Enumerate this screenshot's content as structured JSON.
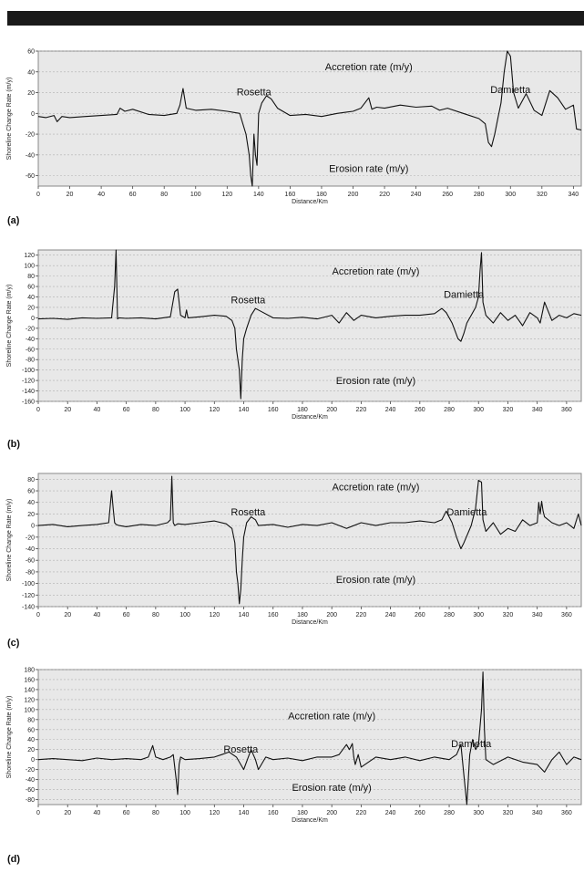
{
  "figure": {
    "panel_labels": [
      "(a)",
      "(b)",
      "(c)",
      "(d)"
    ]
  },
  "chart_data": [
    {
      "type": "line",
      "ylabel": "Shoreline Change Rate (m/y)",
      "xlabel": "Distance/Km",
      "xlim": [
        0,
        345
      ],
      "ylim": [
        -70,
        60
      ],
      "yticks": [
        -60,
        -40,
        -20,
        0,
        20,
        40,
        60
      ],
      "xticks": [
        0,
        20,
        40,
        60,
        80,
        100,
        120,
        140,
        160,
        180,
        200,
        220,
        240,
        260,
        280,
        300,
        320,
        340
      ],
      "grid": true,
      "annotations": [
        {
          "text": "Accretion rate (m/y)",
          "x": 210,
          "y": 45
        },
        {
          "text": "Rosetta",
          "x": 137,
          "y": 21
        },
        {
          "text": "Damietta",
          "x": 300,
          "y": 23
        },
        {
          "text": "Erosion rate (m/y)",
          "x": 210,
          "y": -53
        }
      ],
      "series": [
        {
          "x": [
            0,
            5,
            10,
            12,
            15,
            20,
            30,
            40,
            50,
            52,
            55,
            60,
            70,
            80,
            88,
            90,
            92,
            94,
            100,
            110,
            120,
            128,
            132,
            134,
            135,
            136,
            137,
            138,
            139,
            140,
            142,
            145,
            148,
            152,
            160,
            170,
            180,
            190,
            200,
            205,
            210,
            212,
            215,
            220,
            230,
            240,
            250,
            255,
            260,
            270,
            280,
            284,
            286,
            288,
            290,
            292,
            294,
            296,
            298,
            300,
            302,
            305,
            310,
            315,
            320,
            325,
            330,
            335,
            340,
            342,
            345
          ],
          "y": [
            -3,
            -4,
            -2,
            -8,
            -3,
            -4,
            -3,
            -2,
            -1,
            5,
            2,
            4,
            -1,
            -2,
            0,
            8,
            24,
            5,
            3,
            4,
            2,
            0,
            -20,
            -40,
            -60,
            -70,
            -20,
            -40,
            -50,
            0,
            10,
            17,
            14,
            5,
            -2,
            -1,
            -3,
            0,
            2,
            5,
            15,
            4,
            6,
            5,
            8,
            6,
            7,
            3,
            5,
            0,
            -5,
            -10,
            -28,
            -32,
            -20,
            -5,
            10,
            40,
            60,
            55,
            20,
            5,
            19,
            3,
            -2,
            22,
            15,
            4,
            8,
            -15,
            -16
          ]
        }
      ]
    },
    {
      "type": "line",
      "ylabel": "Shoreline Change Rate (m/y)",
      "xlabel": "Distance/Km",
      "xlim": [
        0,
        370
      ],
      "ylim": [
        -160,
        130
      ],
      "yticks": [
        -160,
        -140,
        -120,
        -100,
        -80,
        -60,
        -40,
        -20,
        0,
        20,
        40,
        60,
        80,
        100,
        120
      ],
      "xticks": [
        0,
        20,
        40,
        60,
        80,
        100,
        120,
        140,
        160,
        180,
        200,
        220,
        240,
        260,
        280,
        300,
        320,
        340,
        360
      ],
      "grid": true,
      "annotations": [
        {
          "text": "Accretion rate (m/y)",
          "x": 230,
          "y": 90
        },
        {
          "text": "Rosetta",
          "x": 143,
          "y": 35
        },
        {
          "text": "Damietta",
          "x": 290,
          "y": 45
        },
        {
          "text": "Erosion rate (m/y)",
          "x": 230,
          "y": -120
        }
      ],
      "series": [
        {
          "x": [
            0,
            10,
            20,
            30,
            40,
            50,
            52,
            53,
            54,
            55,
            60,
            70,
            80,
            90,
            93,
            95,
            97,
            100,
            101,
            102,
            110,
            120,
            128,
            132,
            134,
            135,
            136,
            137,
            138,
            139,
            140,
            142,
            145,
            148,
            150,
            160,
            170,
            180,
            190,
            200,
            205,
            210,
            215,
            220,
            230,
            240,
            250,
            260,
            270,
            275,
            278,
            282,
            286,
            288,
            290,
            292,
            295,
            298,
            300,
            301,
            302,
            303,
            305,
            310,
            315,
            320,
            325,
            330,
            335,
            340,
            342,
            345,
            350,
            355,
            360,
            365,
            370
          ],
          "y": [
            -2,
            -1,
            -3,
            0,
            -1,
            0,
            60,
            130,
            -2,
            0,
            -1,
            0,
            -2,
            2,
            50,
            55,
            5,
            0,
            15,
            0,
            2,
            5,
            3,
            -5,
            -20,
            -60,
            -80,
            -100,
            -155,
            -80,
            -40,
            -20,
            5,
            18,
            15,
            0,
            -1,
            1,
            -2,
            5,
            -10,
            10,
            -5,
            5,
            0,
            3,
            5,
            5,
            8,
            18,
            10,
            -10,
            -40,
            -45,
            -30,
            -10,
            5,
            20,
            40,
            90,
            125,
            30,
            5,
            -10,
            10,
            -5,
            5,
            -15,
            10,
            0,
            -10,
            30,
            -5,
            5,
            0,
            8,
            5
          ]
        }
      ]
    },
    {
      "type": "line",
      "ylabel": "Shoreline Change Rate (m/y)",
      "xlabel": "Distance/Km",
      "xlim": [
        0,
        370
      ],
      "ylim": [
        -140,
        90
      ],
      "yticks": [
        -140,
        -120,
        -100,
        -80,
        -60,
        -40,
        -20,
        0,
        20,
        40,
        60,
        80
      ],
      "xticks": [
        0,
        20,
        40,
        60,
        80,
        100,
        120,
        140,
        160,
        180,
        200,
        220,
        240,
        260,
        280,
        300,
        320,
        340,
        360
      ],
      "grid": true,
      "annotations": [
        {
          "text": "Accretion rate (m/y)",
          "x": 230,
          "y": 67
        },
        {
          "text": "Rosetta",
          "x": 143,
          "y": 24
        },
        {
          "text": "Damietta",
          "x": 292,
          "y": 24
        },
        {
          "text": "Erosion rate (m/y)",
          "x": 230,
          "y": -93
        }
      ],
      "series": [
        {
          "x": [
            0,
            10,
            20,
            30,
            40,
            48,
            50,
            51,
            52,
            53,
            55,
            60,
            70,
            80,
            88,
            90,
            91,
            92,
            93,
            95,
            100,
            110,
            120,
            128,
            132,
            134,
            135,
            136,
            137,
            138,
            139,
            140,
            142,
            145,
            148,
            150,
            160,
            170,
            180,
            190,
            200,
            210,
            220,
            230,
            240,
            250,
            260,
            270,
            275,
            278,
            282,
            285,
            288,
            290,
            295,
            298,
            300,
            302,
            303,
            305,
            310,
            315,
            320,
            325,
            330,
            335,
            340,
            341,
            342,
            343,
            344,
            345,
            350,
            355,
            360,
            365,
            368,
            370
          ],
          "y": [
            0,
            2,
            -2,
            0,
            2,
            5,
            60,
            30,
            5,
            2,
            0,
            -2,
            2,
            0,
            5,
            10,
            85,
            5,
            0,
            3,
            2,
            5,
            8,
            3,
            -5,
            -30,
            -80,
            -100,
            -135,
            -110,
            -60,
            -20,
            5,
            15,
            10,
            0,
            2,
            -3,
            2,
            0,
            5,
            -5,
            5,
            0,
            5,
            5,
            8,
            5,
            10,
            25,
            5,
            -20,
            -40,
            -30,
            0,
            30,
            78,
            75,
            10,
            -10,
            5,
            -15,
            -5,
            -10,
            10,
            0,
            5,
            40,
            20,
            42,
            25,
            15,
            5,
            0,
            5,
            -5,
            20,
            0
          ]
        }
      ]
    },
    {
      "type": "line",
      "ylabel": "Shoreline Change Rate (m/y)",
      "xlabel": "Distance/Km",
      "xlim": [
        0,
        370
      ],
      "ylim": [
        -90,
        180
      ],
      "yticks": [
        -80,
        -60,
        -40,
        -20,
        0,
        20,
        40,
        60,
        80,
        100,
        120,
        140,
        160,
        180
      ],
      "xticks": [
        0,
        20,
        40,
        60,
        80,
        100,
        120,
        140,
        160,
        180,
        200,
        220,
        240,
        260,
        280,
        300,
        320,
        340,
        360
      ],
      "grid": true,
      "annotations": [
        {
          "text": "Accretion rate (m/y)",
          "x": 200,
          "y": 88
        },
        {
          "text": "Rosetta",
          "x": 138,
          "y": 21
        },
        {
          "text": "Damietta",
          "x": 295,
          "y": 32
        },
        {
          "text": "Erosion rate (m/y)",
          "x": 200,
          "y": -55
        }
      ],
      "series": [
        {
          "x": [
            0,
            10,
            20,
            30,
            40,
            50,
            60,
            70,
            75,
            78,
            80,
            85,
            90,
            92,
            94,
            95,
            96,
            97,
            100,
            110,
            120,
            125,
            130,
            135,
            138,
            140,
            145,
            148,
            150,
            155,
            160,
            170,
            180,
            190,
            200,
            205,
            210,
            212,
            214,
            215,
            216,
            218,
            220,
            230,
            240,
            250,
            260,
            270,
            280,
            285,
            288,
            290,
            292,
            294,
            296,
            298,
            300,
            302,
            303,
            304,
            305,
            310,
            320,
            330,
            340,
            345,
            350,
            355,
            360,
            365,
            370
          ],
          "y": [
            0,
            2,
            0,
            -2,
            3,
            0,
            2,
            0,
            5,
            28,
            5,
            0,
            5,
            10,
            -40,
            -70,
            -10,
            5,
            0,
            2,
            5,
            10,
            15,
            5,
            -10,
            -20,
            20,
            0,
            -20,
            5,
            0,
            3,
            -2,
            5,
            5,
            10,
            30,
            20,
            32,
            5,
            -10,
            10,
            -15,
            5,
            0,
            5,
            -2,
            5,
            0,
            10,
            30,
            -30,
            -90,
            10,
            40,
            20,
            30,
            100,
            175,
            60,
            0,
            -10,
            5,
            -5,
            -10,
            -25,
            0,
            15,
            -10,
            5,
            0
          ]
        }
      ]
    }
  ]
}
